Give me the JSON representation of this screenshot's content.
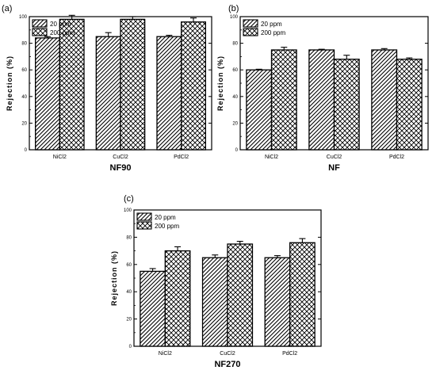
{
  "chart_data": [
    {
      "type": "bar",
      "panel_label": "(a)",
      "title": "",
      "xlabel": "NF90",
      "ylabel": "Rejection (%)",
      "ylim": [
        0,
        100
      ],
      "yticks": [
        "0",
        "20",
        "40",
        "60",
        "80",
        "100"
      ],
      "categories": [
        "NiCl2",
        "CuCl2",
        "PdCl2"
      ],
      "series": [
        {
          "name": "20 ppm",
          "values": [
            84,
            85,
            85
          ],
          "errors": [
            1,
            3,
            1
          ],
          "pattern": "hatch"
        },
        {
          "name": "200 ppm",
          "values": [
            98,
            98,
            96
          ],
          "errors": [
            3,
            2,
            3
          ],
          "pattern": "cross"
        }
      ],
      "legend_position": "top-left",
      "grid": false
    },
    {
      "type": "bar",
      "panel_label": "(b)",
      "title": "",
      "xlabel": "NF",
      "ylabel": "Rejection (%)",
      "ylim": [
        0,
        100
      ],
      "yticks": [
        "0",
        "20",
        "40",
        "60",
        "80",
        "100"
      ],
      "categories": [
        "NiCl2",
        "CuCl2",
        "PdCl2"
      ],
      "series": [
        {
          "name": "20 ppm",
          "values": [
            60,
            75,
            75
          ],
          "errors": [
            0.5,
            0.5,
            1
          ],
          "pattern": "hatch"
        },
        {
          "name": "200 ppm",
          "values": [
            75,
            68,
            68
          ],
          "errors": [
            2,
            3,
            1
          ],
          "pattern": "cross"
        }
      ],
      "legend_position": "top-left",
      "grid": false
    },
    {
      "type": "bar",
      "panel_label": "(c)",
      "title": "",
      "xlabel": "NF270",
      "ylabel": "Rejection (%)",
      "ylim": [
        0,
        100
      ],
      "yticks": [
        "0",
        "20",
        "40",
        "60",
        "80",
        "100"
      ],
      "categories": [
        "NiCl2",
        "CuCl2",
        "PdCl2"
      ],
      "series": [
        {
          "name": "20 ppm",
          "values": [
            55,
            65,
            65
          ],
          "errors": [
            2,
            2,
            1.5
          ],
          "pattern": "hatch"
        },
        {
          "name": "200 ppm",
          "values": [
            70,
            75,
            76
          ],
          "errors": [
            3,
            2,
            3
          ],
          "pattern": "cross"
        }
      ],
      "legend_position": "top-left",
      "grid": false
    }
  ]
}
